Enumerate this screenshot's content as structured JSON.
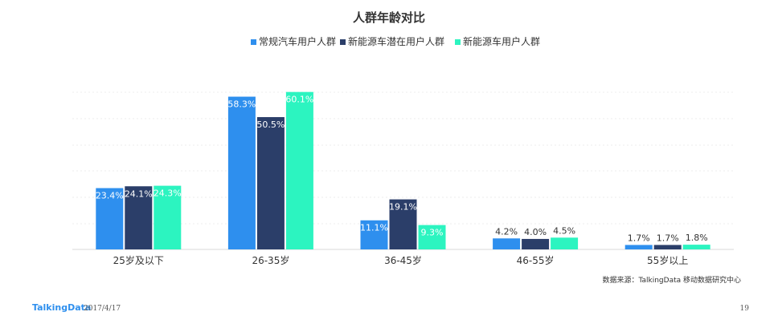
{
  "chart_data": {
    "type": "bar",
    "title": "人群年龄对比",
    "categories": [
      "25岁及以下",
      "26-35岁",
      "36-45岁",
      "46-55岁",
      "55岁以上"
    ],
    "series": [
      {
        "name": "常规汽车用户人群",
        "color": "#2e8fee",
        "values": [
          23.4,
          58.3,
          11.1,
          4.2,
          1.7
        ],
        "labels": [
          "23.4%",
          "58.3%",
          "11.1%",
          "4.2%",
          "1.7%"
        ]
      },
      {
        "name": "新能源车潜在用户人群",
        "color": "#2b3e69",
        "values": [
          24.1,
          50.5,
          19.1,
          4.0,
          1.7
        ],
        "labels": [
          "24.1%",
          "50.5%",
          "19.1%",
          "4.0%",
          "1.7%"
        ]
      },
      {
        "name": "新能源车用户人群",
        "color": "#2cf4c0",
        "values": [
          24.3,
          60.1,
          9.3,
          4.5,
          1.8
        ],
        "labels": [
          "24.3%",
          "60.1%",
          "9.3%",
          "4.5%",
          "1.8%"
        ]
      }
    ],
    "ylim": [
      0,
      60
    ],
    "xlabel": "",
    "ylabel": "",
    "grid": true,
    "legend": "top-center"
  },
  "source_note": "数据来源：TalkingData 移动数据研究中心",
  "footer": {
    "brand": "TalkingData",
    "date": "2017/4/17",
    "page": "19"
  }
}
